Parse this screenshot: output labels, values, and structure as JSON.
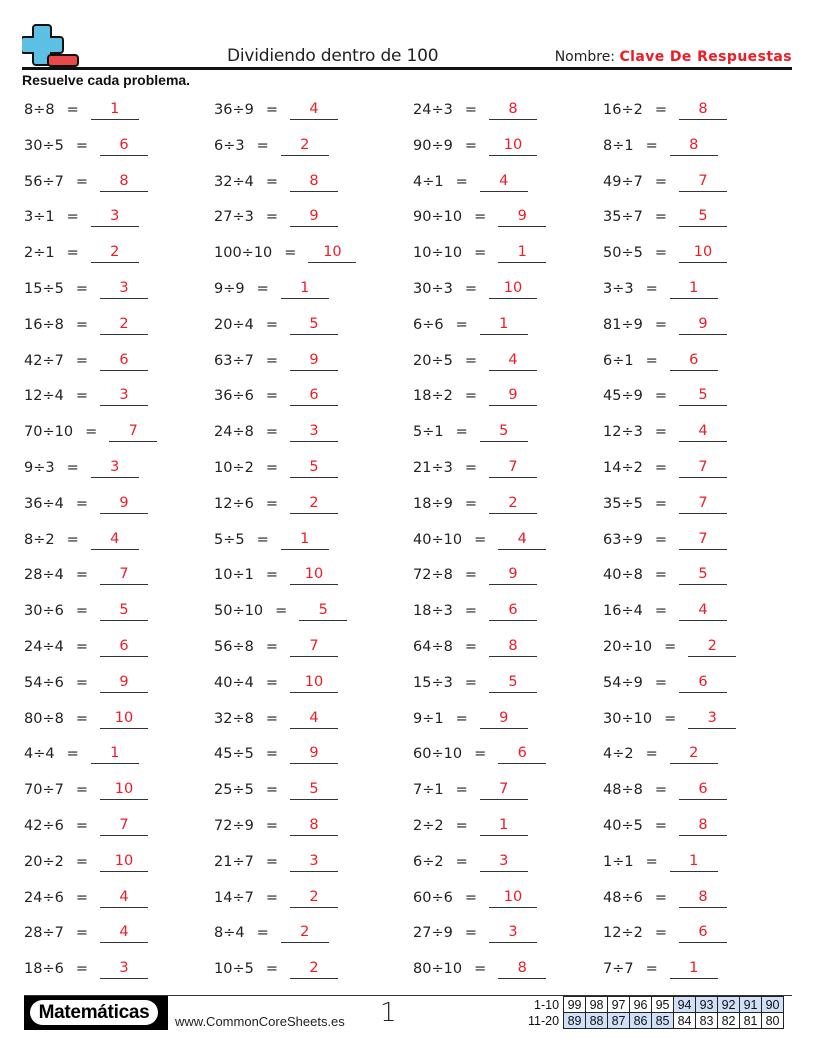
{
  "header": {
    "title": "Dividiendo dentro de 100",
    "name_label": "Nombre:",
    "name_value": "Clave De Respuestas",
    "logo_icon": "plus-minus-logo-icon",
    "instructions": "Resuelve cada problema."
  },
  "colors": {
    "answer": "#ee1c25",
    "logo_plus": "#5bc0e4",
    "logo_minus": "#e84a4a",
    "score_highlight": "#cfe0f7"
  },
  "columns": [
    {
      "problems": [
        {
          "q": "8÷8",
          "a": "1"
        },
        {
          "q": "30÷5",
          "a": "6"
        },
        {
          "q": "56÷7",
          "a": "8"
        },
        {
          "q": "3÷1",
          "a": "3"
        },
        {
          "q": "2÷1",
          "a": "2"
        },
        {
          "q": "15÷5",
          "a": "3"
        },
        {
          "q": "16÷8",
          "a": "2"
        },
        {
          "q": "42÷7",
          "a": "6"
        },
        {
          "q": "12÷4",
          "a": "3"
        },
        {
          "q": "70÷10",
          "a": "7"
        },
        {
          "q": "9÷3",
          "a": "3"
        },
        {
          "q": "36÷4",
          "a": "9"
        },
        {
          "q": "8÷2",
          "a": "4"
        },
        {
          "q": "28÷4",
          "a": "7"
        },
        {
          "q": "30÷6",
          "a": "5"
        },
        {
          "q": "24÷4",
          "a": "6"
        },
        {
          "q": "54÷6",
          "a": "9"
        },
        {
          "q": "80÷8",
          "a": "10"
        },
        {
          "q": "4÷4",
          "a": "1"
        },
        {
          "q": "70÷7",
          "a": "10"
        },
        {
          "q": "42÷6",
          "a": "7"
        },
        {
          "q": "20÷2",
          "a": "10"
        },
        {
          "q": "24÷6",
          "a": "4"
        },
        {
          "q": "28÷7",
          "a": "4"
        },
        {
          "q": "18÷6",
          "a": "3"
        }
      ]
    },
    {
      "problems": [
        {
          "q": "36÷9",
          "a": "4"
        },
        {
          "q": "6÷3",
          "a": "2"
        },
        {
          "q": "32÷4",
          "a": "8"
        },
        {
          "q": "27÷3",
          "a": "9"
        },
        {
          "q": "100÷10",
          "a": "10"
        },
        {
          "q": "9÷9",
          "a": "1"
        },
        {
          "q": "20÷4",
          "a": "5"
        },
        {
          "q": "63÷7",
          "a": "9"
        },
        {
          "q": "36÷6",
          "a": "6"
        },
        {
          "q": "24÷8",
          "a": "3"
        },
        {
          "q": "10÷2",
          "a": "5"
        },
        {
          "q": "12÷6",
          "a": "2"
        },
        {
          "q": "5÷5",
          "a": "1"
        },
        {
          "q": "10÷1",
          "a": "10"
        },
        {
          "q": "50÷10",
          "a": "5"
        },
        {
          "q": "56÷8",
          "a": "7"
        },
        {
          "q": "40÷4",
          "a": "10"
        },
        {
          "q": "32÷8",
          "a": "4"
        },
        {
          "q": "45÷5",
          "a": "9"
        },
        {
          "q": "25÷5",
          "a": "5"
        },
        {
          "q": "72÷9",
          "a": "8"
        },
        {
          "q": "21÷7",
          "a": "3"
        },
        {
          "q": "14÷7",
          "a": "2"
        },
        {
          "q": "8÷4",
          "a": "2"
        },
        {
          "q": "10÷5",
          "a": "2"
        }
      ]
    },
    {
      "problems": [
        {
          "q": "24÷3",
          "a": "8"
        },
        {
          "q": "90÷9",
          "a": "10"
        },
        {
          "q": "4÷1",
          "a": "4"
        },
        {
          "q": "90÷10",
          "a": "9"
        },
        {
          "q": "10÷10",
          "a": "1"
        },
        {
          "q": "30÷3",
          "a": "10"
        },
        {
          "q": "6÷6",
          "a": "1"
        },
        {
          "q": "20÷5",
          "a": "4"
        },
        {
          "q": "18÷2",
          "a": "9"
        },
        {
          "q": "5÷1",
          "a": "5"
        },
        {
          "q": "21÷3",
          "a": "7"
        },
        {
          "q": "18÷9",
          "a": "2"
        },
        {
          "q": "40÷10",
          "a": "4"
        },
        {
          "q": "72÷8",
          "a": "9"
        },
        {
          "q": "18÷3",
          "a": "6"
        },
        {
          "q": "64÷8",
          "a": "8"
        },
        {
          "q": "15÷3",
          "a": "5"
        },
        {
          "q": "9÷1",
          "a": "9"
        },
        {
          "q": "60÷10",
          "a": "6"
        },
        {
          "q": "7÷1",
          "a": "7"
        },
        {
          "q": "2÷2",
          "a": "1"
        },
        {
          "q": "6÷2",
          "a": "3"
        },
        {
          "q": "60÷6",
          "a": "10"
        },
        {
          "q": "27÷9",
          "a": "3"
        },
        {
          "q": "80÷10",
          "a": "8"
        }
      ]
    },
    {
      "problems": [
        {
          "q": "16÷2",
          "a": "8"
        },
        {
          "q": "8÷1",
          "a": "8"
        },
        {
          "q": "49÷7",
          "a": "7"
        },
        {
          "q": "35÷7",
          "a": "5"
        },
        {
          "q": "50÷5",
          "a": "10"
        },
        {
          "q": "3÷3",
          "a": "1"
        },
        {
          "q": "81÷9",
          "a": "9"
        },
        {
          "q": "6÷1",
          "a": "6"
        },
        {
          "q": "45÷9",
          "a": "5"
        },
        {
          "q": "12÷3",
          "a": "4"
        },
        {
          "q": "14÷2",
          "a": "7"
        },
        {
          "q": "35÷5",
          "a": "7"
        },
        {
          "q": "63÷9",
          "a": "7"
        },
        {
          "q": "40÷8",
          "a": "5"
        },
        {
          "q": "16÷4",
          "a": "4"
        },
        {
          "q": "20÷10",
          "a": "2"
        },
        {
          "q": "54÷9",
          "a": "6"
        },
        {
          "q": "30÷10",
          "a": "3"
        },
        {
          "q": "4÷2",
          "a": "2"
        },
        {
          "q": "48÷8",
          "a": "6"
        },
        {
          "q": "40÷5",
          "a": "8"
        },
        {
          "q": "1÷1",
          "a": "1"
        },
        {
          "q": "48÷6",
          "a": "8"
        },
        {
          "q": "12÷2",
          "a": "6"
        },
        {
          "q": "7÷7",
          "a": "1"
        }
      ]
    }
  ],
  "footer": {
    "brand": "Matemáticas",
    "site": "www.CommonCoreSheets.es",
    "page": "1",
    "score_rows": [
      {
        "label": "1-10",
        "cells": [
          "99",
          "98",
          "97",
          "96",
          "95",
          "94",
          "93",
          "92",
          "91",
          "90"
        ],
        "highlight": [
          5,
          6,
          7,
          8,
          9
        ]
      },
      {
        "label": "11-20",
        "cells": [
          "89",
          "88",
          "87",
          "86",
          "85",
          "84",
          "83",
          "82",
          "81",
          "80"
        ],
        "highlight": [
          0,
          1,
          2,
          3,
          4
        ]
      }
    ]
  }
}
